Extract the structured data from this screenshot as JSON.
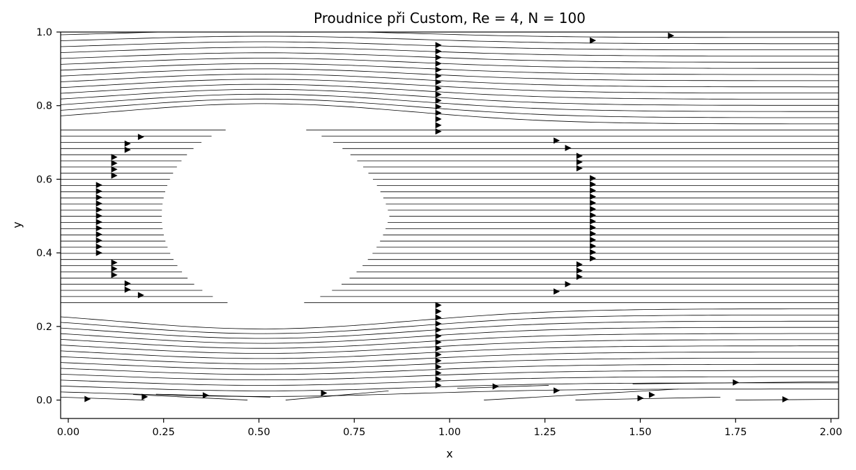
{
  "chart_data": {
    "type": "streamline",
    "title": "Proudnice při Custom, Re = 4, N = 100",
    "xlabel": "x",
    "ylabel": "y",
    "xlim": [
      -0.02,
      2.02
    ],
    "ylim": [
      -0.05,
      1.0
    ],
    "x_ticks": [
      "0.00",
      "0.25",
      "0.50",
      "0.75",
      "1.00",
      "1.25",
      "1.50",
      "1.75",
      "2.00"
    ],
    "y_ticks": [
      "0.0",
      "0.2",
      "0.4",
      "0.6",
      "0.8",
      "1.0"
    ],
    "grid": false,
    "line_color": "#000000",
    "obstacle": {
      "shape": "ellipse",
      "center": [
        0.51,
        0.5
      ],
      "radius_x": 0.26,
      "radius_y": 0.25
    },
    "streamline_y_start": 0.03,
    "streamline_y_end": 0.985,
    "streamline_count": 58,
    "arrow_rows": [
      {
        "x": 0.08,
        "y_from": 0.4,
        "y_to": 0.6
      },
      {
        "x": 0.12,
        "y_from": 0.34,
        "y_to": 0.39
      },
      {
        "x": 0.12,
        "y_from": 0.61,
        "y_to": 0.665
      },
      {
        "x": 0.155,
        "y_from": 0.3,
        "y_to": 0.32
      },
      {
        "x": 0.155,
        "y_from": 0.68,
        "y_to": 0.7
      },
      {
        "x": 0.19,
        "y_from": 0.285,
        "y_to": 0.285
      },
      {
        "x": 0.19,
        "y_from": 0.715,
        "y_to": 0.715
      },
      {
        "x": 0.97,
        "y_from": 0.04,
        "y_to": 0.27
      },
      {
        "x": 0.97,
        "y_from": 0.73,
        "y_to": 0.975
      },
      {
        "x": 1.28,
        "y_from": 0.295,
        "y_to": 0.295
      },
      {
        "x": 1.28,
        "y_from": 0.705,
        "y_to": 0.705
      },
      {
        "x": 1.31,
        "y_from": 0.315,
        "y_to": 0.315
      },
      {
        "x": 1.31,
        "y_from": 0.685,
        "y_to": 0.685
      },
      {
        "x": 1.34,
        "y_from": 0.335,
        "y_to": 0.37
      },
      {
        "x": 1.34,
        "y_from": 0.63,
        "y_to": 0.665
      },
      {
        "x": 1.375,
        "y_from": 0.385,
        "y_to": 0.615
      }
    ],
    "bottom_arrows": [
      {
        "x": 0.05,
        "y": 0.003
      },
      {
        "x": 0.2,
        "y": 0.009
      },
      {
        "x": 0.36,
        "y": 0.013
      },
      {
        "x": 0.67,
        "y": 0.019
      },
      {
        "x": 1.12,
        "y": 0.037
      },
      {
        "x": 1.28,
        "y": 0.026
      },
      {
        "x": 1.5,
        "y": 0.005
      },
      {
        "x": 1.53,
        "y": 0.014
      },
      {
        "x": 1.75,
        "y": 0.048
      },
      {
        "x": 1.88,
        "y": 0.002
      }
    ],
    "top_arrows": [
      {
        "x": 1.375,
        "y": 0.977
      },
      {
        "x": 1.58,
        "y": 0.99
      }
    ]
  }
}
